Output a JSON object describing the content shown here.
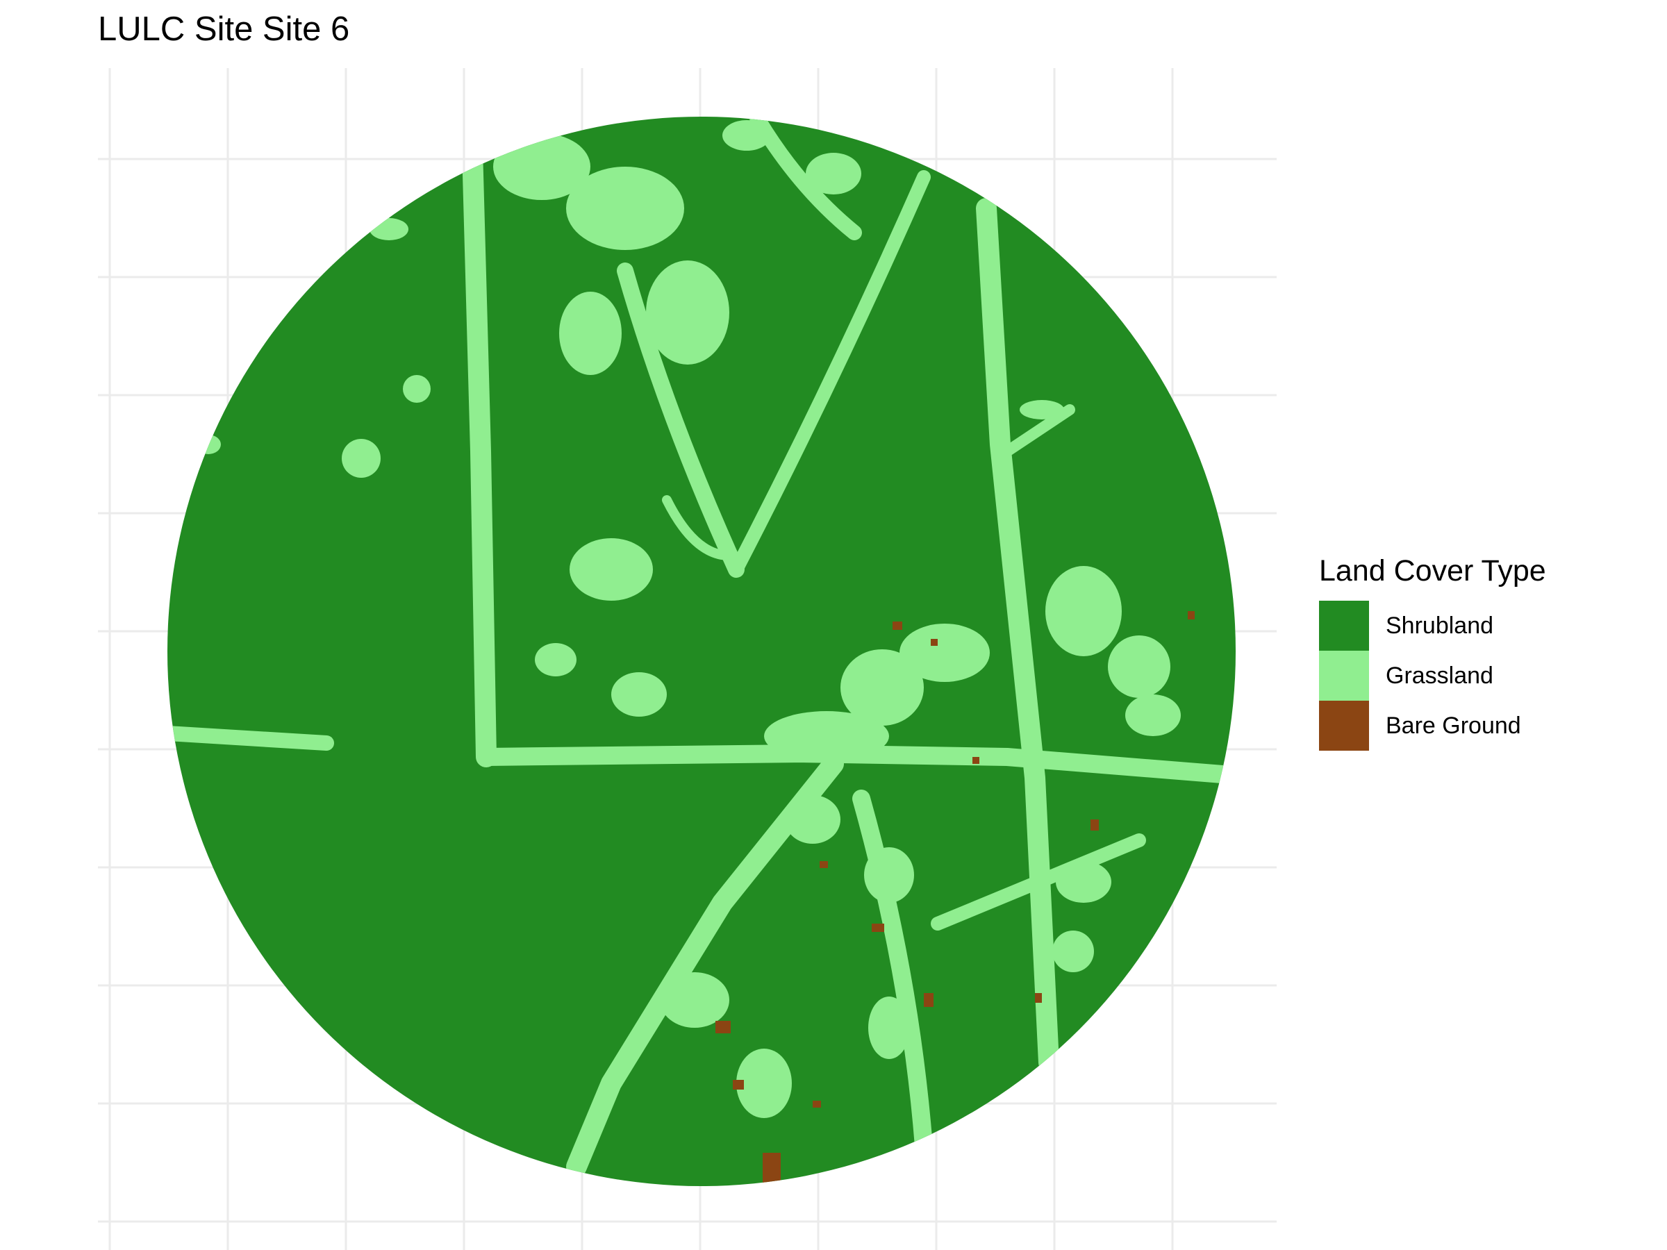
{
  "title": "LULC Site Site 6",
  "legend": {
    "title": "Land Cover Type",
    "items": [
      {
        "label": "Shrubland",
        "color": "#228B22"
      },
      {
        "label": "Grassland",
        "color": "#90EE90"
      },
      {
        "label": "Bare Ground",
        "color": "#8B4513"
      }
    ]
  },
  "map": {
    "type": "classified land-cover raster",
    "shape": "circular site extent",
    "background_color": "#FFFFFF",
    "gridlines": true,
    "gridline_color": "#EBEBEB",
    "axis_tick_labels": false
  }
}
